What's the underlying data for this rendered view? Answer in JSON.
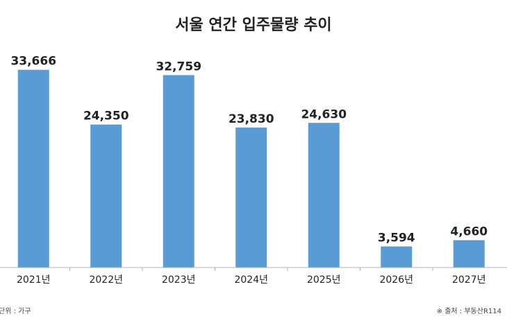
{
  "chart_data": {
    "type": "bar",
    "title": "서울 연간 입주물량 추이",
    "categories": [
      "2021년",
      "2022년",
      "2023년",
      "2024년",
      "2025년",
      "2026년",
      "2027년"
    ],
    "values": [
      33666,
      24350,
      32759,
      23830,
      24630,
      3594,
      4660
    ],
    "value_labels": [
      "33,666",
      "24,350",
      "32,759",
      "23,830",
      "24,630",
      "3,594",
      "4,660"
    ],
    "ylim": [
      0,
      35400
    ],
    "grid": false,
    "bar_color": "#5b9bd5",
    "unit_note": "단위 : 가구",
    "source_note": "※ 출처 : 부동산R114"
  }
}
